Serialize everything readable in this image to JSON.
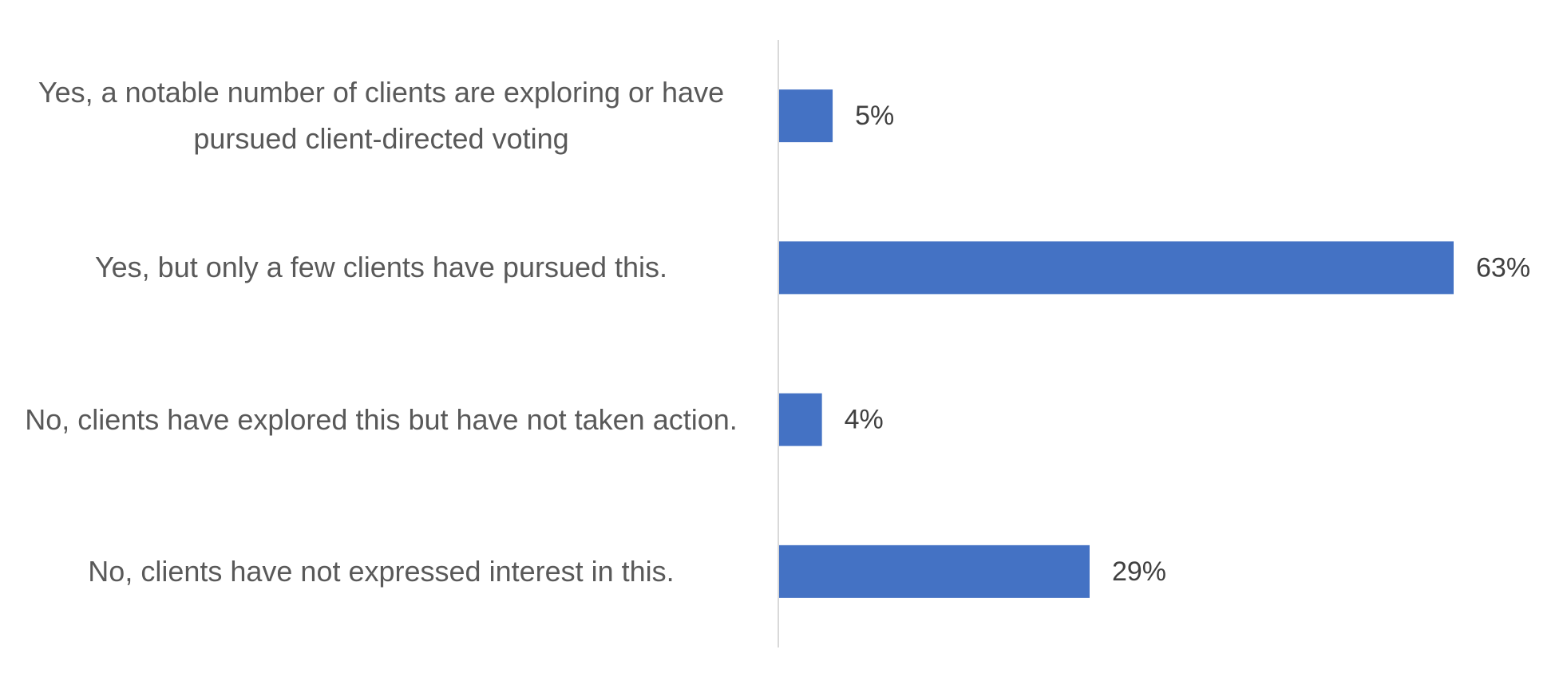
{
  "chart_data": {
    "type": "bar",
    "orientation": "horizontal",
    "categories": [
      "Yes, a notable number of clients are exploring or have pursued client-directed voting",
      "Yes, but only a few clients have pursued this.",
      "No, clients have explored this but have not taken action.",
      "No, clients have not expressed interest in this."
    ],
    "values": [
      5,
      63,
      4,
      29
    ],
    "value_labels": [
      "5%",
      "63%",
      "4%",
      "29%"
    ],
    "color": "#4472c4"
  }
}
